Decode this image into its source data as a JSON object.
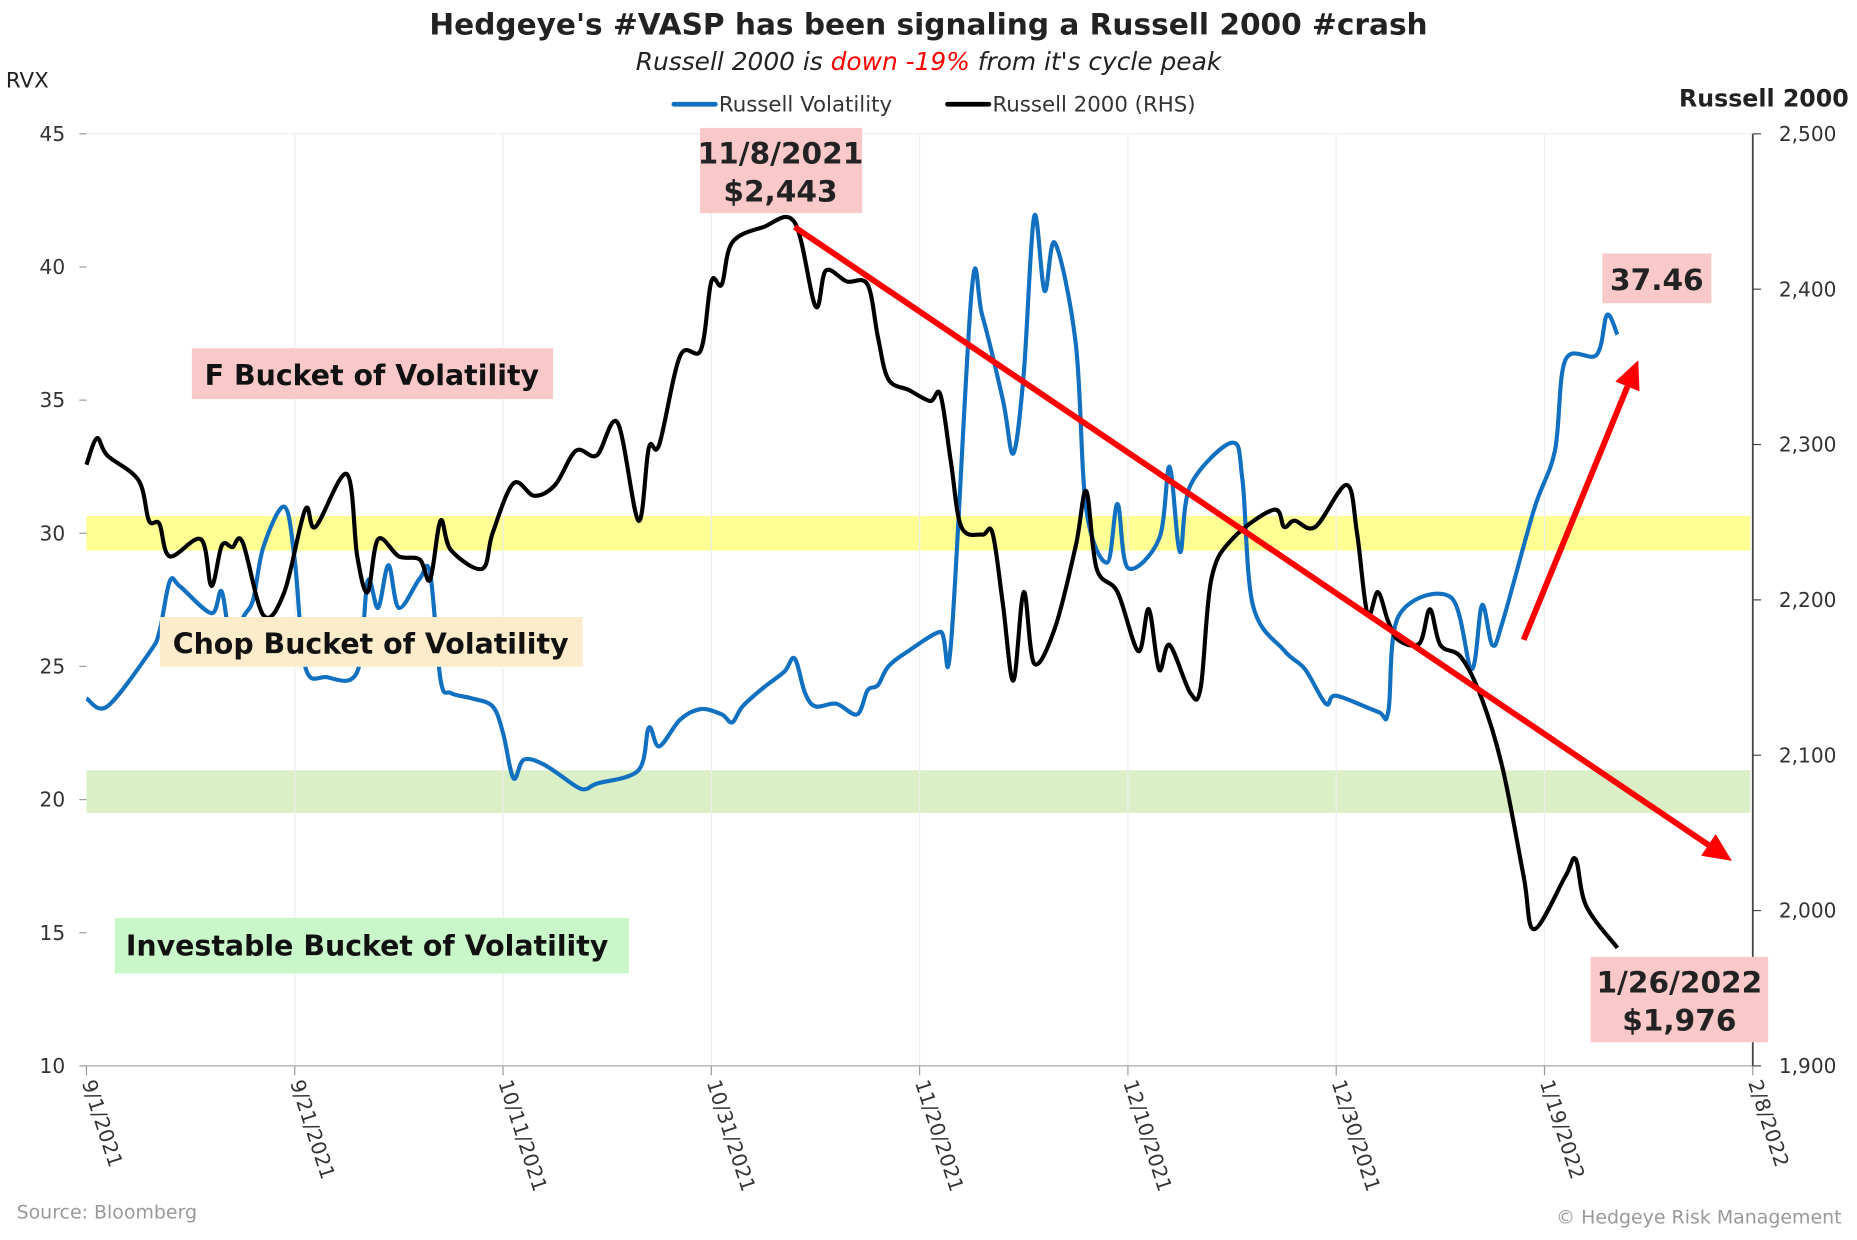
{
  "chart_data": {
    "type": "line",
    "title": "Hedgeye's #VASP has been signaling a Russell 2000 #crash",
    "subtitle": {
      "before": "Russell 2000 is ",
      "highlight": "down -19%",
      "after": " from it's cycle peak"
    },
    "y_left_label": "RVX",
    "y_right_label": "Russell 2000",
    "y_left_lim": [
      10,
      45
    ],
    "y_right_lim": [
      1900,
      2500
    ],
    "y_left_ticks": [
      "45",
      "40",
      "35",
      "30",
      "25",
      "20",
      "15",
      "10"
    ],
    "y_right_ticks": [
      "2,500",
      "2,400",
      "2,300",
      "2,200",
      "2,100",
      "2,000",
      "1,900"
    ],
    "x_lim": [
      "9/1/2021",
      "2/8/2022"
    ],
    "x_ticks": [
      "9/1/2021",
      "9/21/2021",
      "10/11/2021",
      "10/31/2021",
      "11/20/2021",
      "12/10/2021",
      "12/30/2021",
      "1/19/2022",
      "2/8/2022"
    ],
    "grid": "vertical",
    "legend_position": "top-center",
    "series": [
      {
        "name": "Russell Volatility",
        "axis": "left",
        "color": "#1170c0",
        "points": [
          [
            "9/1/2021",
            23.8
          ],
          [
            "9/3/2021",
            23.5
          ],
          [
            "9/7/2021",
            25.5
          ],
          [
            "9/8/2021",
            26.3
          ],
          [
            "9/9/2021",
            28.2
          ],
          [
            "9/10/2021",
            28.0
          ],
          [
            "9/13/2021",
            27.0
          ],
          [
            "9/14/2021",
            27.8
          ],
          [
            "9/15/2021",
            25.5
          ],
          [
            "9/16/2021",
            26.8
          ],
          [
            "9/17/2021",
            27.5
          ],
          [
            "9/18/2021",
            29.5
          ],
          [
            "9/20/2021",
            31.0
          ],
          [
            "9/21/2021",
            29.0
          ],
          [
            "9/22/2021",
            25.0
          ],
          [
            "9/24/2021",
            24.6
          ],
          [
            "9/27/2021",
            24.8
          ],
          [
            "9/28/2021",
            28.2
          ],
          [
            "9/29/2021",
            27.2
          ],
          [
            "9/30/2021",
            28.8
          ],
          [
            "10/1/2021",
            27.2
          ],
          [
            "10/3/2021",
            28.3
          ],
          [
            "10/4/2021",
            28.5
          ],
          [
            "10/5/2021",
            24.5
          ],
          [
            "10/6/2021",
            24.0
          ],
          [
            "10/8/2021",
            23.8
          ],
          [
            "10/10/2021",
            23.5
          ],
          [
            "10/11/2021",
            22.5
          ],
          [
            "10/12/2021",
            20.8
          ],
          [
            "10/13/2021",
            21.5
          ],
          [
            "10/15/2021",
            21.3
          ],
          [
            "10/18/2021",
            20.5
          ],
          [
            "10/19/2021",
            20.4
          ],
          [
            "10/20/2021",
            20.6
          ],
          [
            "10/24/2021",
            21.1
          ],
          [
            "10/25/2021",
            22.7
          ],
          [
            "10/26/2021",
            22.0
          ],
          [
            "10/28/2021",
            23.0
          ],
          [
            "10/30/2021",
            23.4
          ],
          [
            "11/1/2021",
            23.2
          ],
          [
            "11/2/2021",
            22.9
          ],
          [
            "11/3/2021",
            23.5
          ],
          [
            "11/5/2021",
            24.2
          ],
          [
            "11/7/2021",
            24.8
          ],
          [
            "11/8/2021",
            25.3
          ],
          [
            "11/9/2021",
            24.0
          ],
          [
            "11/10/2021",
            23.5
          ],
          [
            "11/12/2021",
            23.6
          ],
          [
            "11/14/2021",
            23.2
          ],
          [
            "11/15/2021",
            24.1
          ],
          [
            "11/16/2021",
            24.3
          ],
          [
            "11/17/2021",
            25.0
          ],
          [
            "11/19/2021",
            25.6
          ],
          [
            "11/22/2021",
            26.3
          ],
          [
            "11/23/2021",
            25.8
          ],
          [
            "11/25/2021",
            39.1
          ],
          [
            "11/26/2021",
            38.2
          ],
          [
            "11/28/2021",
            35.0
          ],
          [
            "11/29/2021",
            33.0
          ],
          [
            "11/30/2021",
            36.0
          ],
          [
            "12/1/2021",
            41.9
          ],
          [
            "12/2/2021",
            39.1
          ],
          [
            "12/3/2021",
            40.9
          ],
          [
            "12/5/2021",
            37.1
          ],
          [
            "12/6/2021",
            30.9
          ],
          [
            "12/8/2021",
            28.9
          ],
          [
            "12/9/2021",
            31.1
          ],
          [
            "12/10/2021",
            28.7
          ],
          [
            "12/13/2021",
            29.8
          ],
          [
            "12/14/2021",
            32.5
          ],
          [
            "12/15/2021",
            29.3
          ],
          [
            "12/16/2021",
            31.8
          ],
          [
            "12/20/2021",
            33.4
          ],
          [
            "12/21/2021",
            32.0
          ],
          [
            "12/22/2021",
            27.3
          ],
          [
            "12/25/2021",
            25.6
          ],
          [
            "12/27/2021",
            24.9
          ],
          [
            "12/29/2021",
            23.6
          ],
          [
            "12/30/2021",
            23.9
          ],
          [
            "1/3/2022",
            23.3
          ],
          [
            "1/4/2022",
            23.3
          ],
          [
            "1/5/2022",
            26.9
          ],
          [
            "1/10/2022",
            27.6
          ],
          [
            "1/12/2022",
            24.9
          ],
          [
            "1/13/2022",
            27.3
          ],
          [
            "1/14/2022",
            25.8
          ],
          [
            "1/15/2022",
            26.7
          ],
          [
            "1/18/2022",
            30.9
          ],
          [
            "1/20/2022",
            33.1
          ],
          [
            "1/21/2022",
            36.5
          ],
          [
            "1/24/2022",
            36.7
          ],
          [
            "1/25/2022",
            38.2
          ],
          [
            "1/26/2022",
            37.46
          ]
        ]
      },
      {
        "name": "Russell 2000 (RHS)",
        "axis": "right",
        "color": "#000000",
        "points": [
          [
            "9/1/2021",
            2287
          ],
          [
            "9/2/2021",
            2304
          ],
          [
            "9/3/2021",
            2293
          ],
          [
            "9/6/2021",
            2277
          ],
          [
            "9/7/2021",
            2251
          ],
          [
            "9/8/2021",
            2249
          ],
          [
            "9/9/2021",
            2228
          ],
          [
            "9/12/2021",
            2239
          ],
          [
            "9/13/2021",
            2209
          ],
          [
            "9/14/2021",
            2235
          ],
          [
            "9/15/2021",
            2234
          ],
          [
            "9/16/2021",
            2237
          ],
          [
            "9/18/2021",
            2190
          ],
          [
            "9/20/2021",
            2205
          ],
          [
            "9/22/2021",
            2258
          ],
          [
            "9/23/2021",
            2247
          ],
          [
            "9/26/2021",
            2281
          ],
          [
            "9/27/2021",
            2228
          ],
          [
            "9/28/2021",
            2205
          ],
          [
            "9/29/2021",
            2239
          ],
          [
            "10/1/2021",
            2228
          ],
          [
            "10/3/2021",
            2226
          ],
          [
            "10/4/2021",
            2213
          ],
          [
            "10/5/2021",
            2251
          ],
          [
            "10/6/2021",
            2232
          ],
          [
            "10/9/2021",
            2220
          ],
          [
            "10/10/2021",
            2243
          ],
          [
            "10/12/2021",
            2275
          ],
          [
            "10/14/2021",
            2267
          ],
          [
            "10/16/2021",
            2274
          ],
          [
            "10/18/2021",
            2296
          ],
          [
            "10/20/2021",
            2293
          ],
          [
            "10/22/2021",
            2314
          ],
          [
            "10/24/2021",
            2251
          ],
          [
            "10/25/2021",
            2298
          ],
          [
            "10/26/2021",
            2300
          ],
          [
            "10/28/2021",
            2357
          ],
          [
            "10/30/2021",
            2361
          ],
          [
            "10/31/2021",
            2405
          ],
          [
            "11/1/2021",
            2403
          ],
          [
            "11/2/2021",
            2430
          ],
          [
            "11/5/2021",
            2440
          ],
          [
            "11/8/2021",
            2443
          ],
          [
            "11/10/2021",
            2389
          ],
          [
            "11/11/2021",
            2412
          ],
          [
            "11/13/2021",
            2405
          ],
          [
            "11/15/2021",
            2403
          ],
          [
            "11/16/2021",
            2369
          ],
          [
            "11/17/2021",
            2342
          ],
          [
            "11/19/2021",
            2335
          ],
          [
            "11/21/2021",
            2328
          ],
          [
            "11/22/2021",
            2332
          ],
          [
            "11/23/2021",
            2289
          ],
          [
            "11/24/2021",
            2247
          ],
          [
            "11/26/2021",
            2242
          ],
          [
            "11/27/2021",
            2243
          ],
          [
            "11/28/2021",
            2197
          ],
          [
            "11/29/2021",
            2148
          ],
          [
            "11/30/2021",
            2205
          ],
          [
            "12/1/2021",
            2159
          ],
          [
            "12/3/2021",
            2182
          ],
          [
            "12/5/2021",
            2235
          ],
          [
            "12/6/2021",
            2270
          ],
          [
            "12/7/2021",
            2220
          ],
          [
            "12/9/2021",
            2205
          ],
          [
            "12/11/2021",
            2167
          ],
          [
            "12/12/2021",
            2194
          ],
          [
            "12/13/2021",
            2155
          ],
          [
            "12/14/2021",
            2171
          ],
          [
            "12/16/2021",
            2140
          ],
          [
            "12/17/2021",
            2144
          ],
          [
            "12/18/2021",
            2213
          ],
          [
            "12/20/2021",
            2239
          ],
          [
            "12/24/2021",
            2258
          ],
          [
            "12/25/2021",
            2247
          ],
          [
            "12/26/2021",
            2251
          ],
          [
            "12/28/2021",
            2247
          ],
          [
            "12/31/2021",
            2274
          ],
          [
            "1/1/2022",
            2243
          ],
          [
            "1/2/2022",
            2191
          ],
          [
            "1/3/2022",
            2205
          ],
          [
            "1/4/2022",
            2186
          ],
          [
            "1/5/2022",
            2174
          ],
          [
            "1/7/2022",
            2172
          ],
          [
            "1/8/2022",
            2194
          ],
          [
            "1/9/2022",
            2171
          ],
          [
            "1/11/2022",
            2163
          ],
          [
            "1/13/2022",
            2136
          ],
          [
            "1/15/2022",
            2091
          ],
          [
            "1/17/2022",
            2022
          ],
          [
            "1/18/2022",
            1988
          ],
          [
            "1/21/2022",
            2022
          ],
          [
            "1/22/2022",
            2033
          ],
          [
            "1/23/2022",
            2003
          ],
          [
            "1/26/2022",
            1976
          ]
        ]
      }
    ],
    "bands": [
      {
        "axis": "left",
        "from": 29.35,
        "to": 30.65,
        "color": "#ffff80"
      },
      {
        "axis": "left",
        "from": 19.5,
        "to": 21.1,
        "color": "#d4ecbc"
      }
    ],
    "bucket_labels": [
      {
        "text": "F Bucket of Volatility",
        "color": "#f9c9c9"
      },
      {
        "text": "Chop Bucket of Volatility",
        "color": "#fdeccb"
      },
      {
        "text": "Investable Bucket of Volatility",
        "color": "#caf7ca"
      }
    ],
    "annotations": {
      "peak": {
        "date": "11/8/2021",
        "value": "$2,443",
        "color": "#f9c9c9"
      },
      "rvx_last": {
        "value": "37.46",
        "color": "#f9c9c9"
      },
      "last": {
        "date": "1/26/2022",
        "value": "$1,976",
        "color": "#f9c9c9"
      }
    },
    "arrows": [
      {
        "color": "#ff0000",
        "from": [
          "11/8/2021",
          2440
        ],
        "to": [
          "2/6/2022",
          2032
        ],
        "axis": "right"
      },
      {
        "color": "#ff0000",
        "from": [
          "1/17/2022",
          26.0
        ],
        "to": [
          "1/28/2022",
          36.5
        ],
        "axis": "left"
      }
    ],
    "highlight_color": "#ff0000",
    "source": "Source: Bloomberg",
    "copyright": "© Hedgeye Risk Management"
  }
}
